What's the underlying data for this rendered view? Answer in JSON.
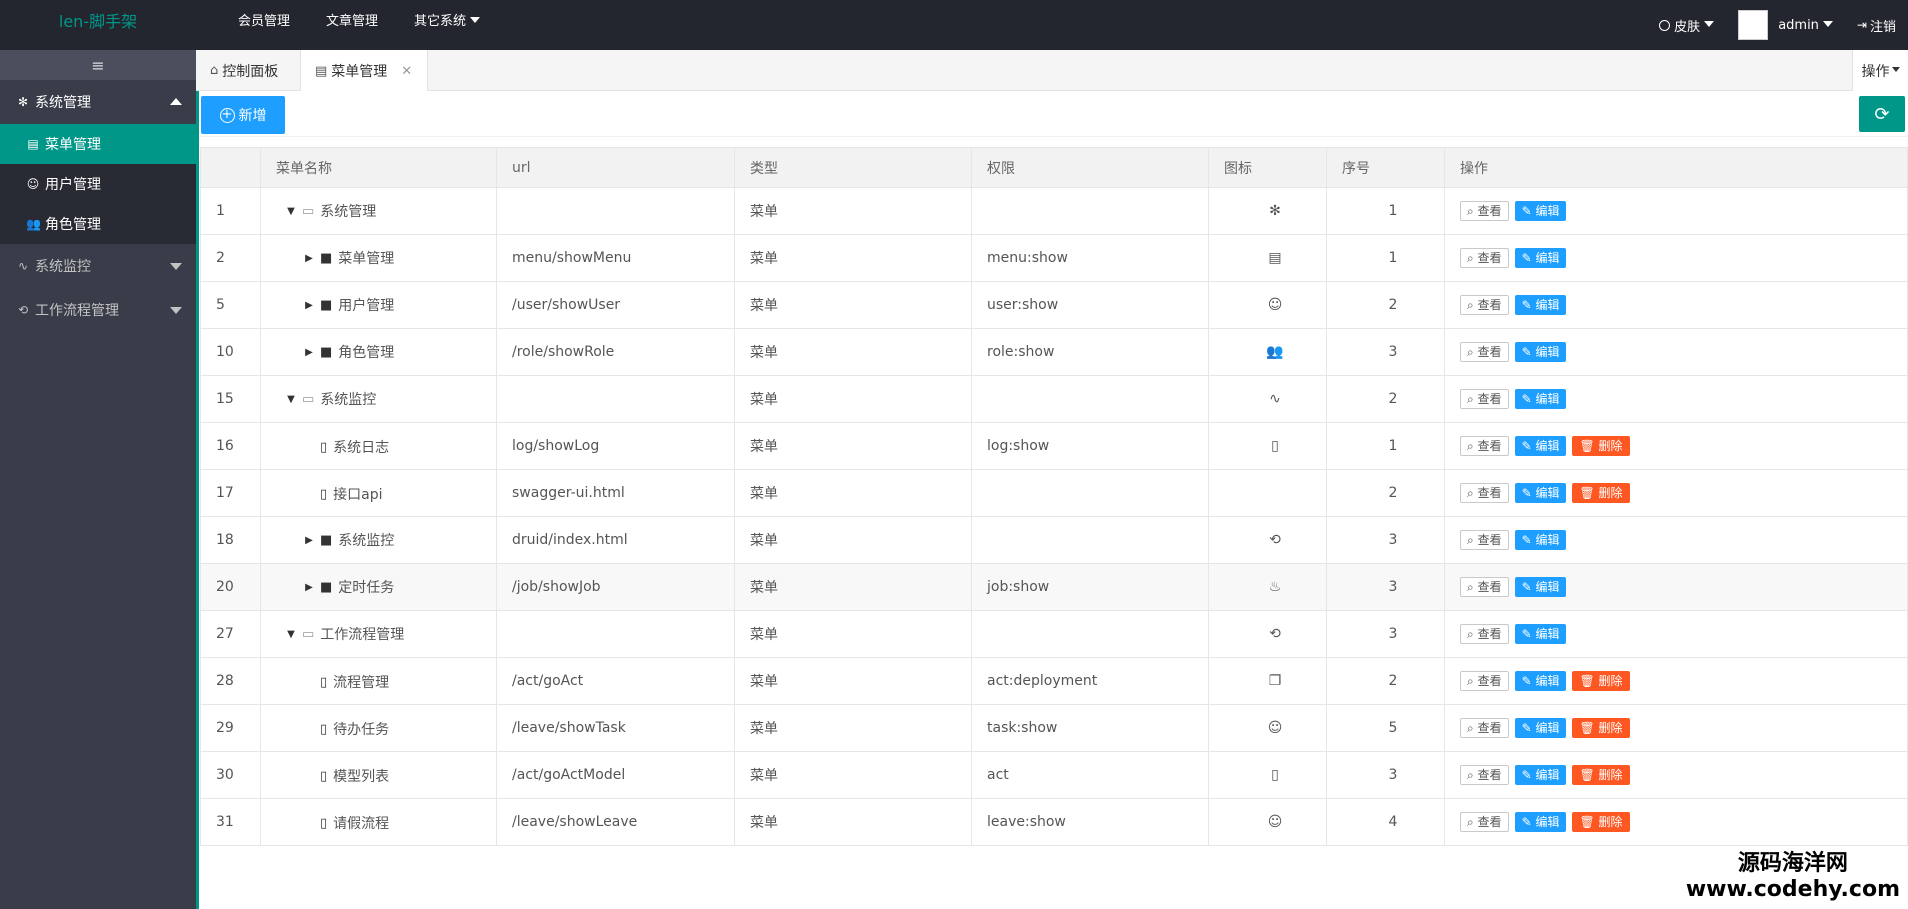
{
  "header": {
    "logo": "len-脚手架",
    "nav": [
      "会员管理",
      "文章管理",
      "其它系统"
    ],
    "skin": "皮肤",
    "user": "admin",
    "logout": "注销"
  },
  "sidebar": {
    "toggle": "≡",
    "groups": [
      {
        "label": "系统管理",
        "icon": "gear-icon",
        "items": [
          {
            "label": "菜单管理",
            "icon": "menu-icon",
            "active": true
          },
          {
            "label": "用户管理",
            "icon": "smile-icon",
            "active": false
          },
          {
            "label": "角色管理",
            "icon": "users-icon",
            "active": false
          }
        ]
      },
      {
        "label": "系统监控",
        "icon": "pulse-icon"
      },
      {
        "label": "工作流程管理",
        "icon": "loop-icon"
      }
    ]
  },
  "tabs": {
    "items": [
      {
        "label": "控制面板",
        "icon": "home-icon"
      },
      {
        "label": "菜单管理",
        "icon": "menu-icon"
      }
    ],
    "ops": "操作"
  },
  "toolbar": {
    "add_label": "新增"
  },
  "table": {
    "headers": [
      "",
      "菜单名称",
      "url",
      "类型",
      "权限",
      "图标",
      "序号",
      "操作"
    ],
    "buttons": {
      "view": "查看",
      "edit": "编辑",
      "delete": "删除"
    },
    "rows": [
      {
        "id": "1",
        "name": "系统管理",
        "url": "",
        "type": "菜单",
        "perm": "",
        "icon": "gear-icon",
        "sort": "1",
        "level": 0,
        "node": "open",
        "del": false
      },
      {
        "id": "2",
        "name": "菜单管理",
        "url": "menu/showMenu",
        "type": "菜单",
        "perm": "menu:show",
        "icon": "menu-icon",
        "sort": "1",
        "level": 1,
        "node": "closed",
        "del": false
      },
      {
        "id": "5",
        "name": "用户管理",
        "url": "/user/showUser",
        "type": "菜单",
        "perm": "user:show",
        "icon": "smile-icon",
        "sort": "2",
        "level": 1,
        "node": "closed",
        "del": false
      },
      {
        "id": "10",
        "name": "角色管理",
        "url": "/role/showRole",
        "type": "菜单",
        "perm": "role:show",
        "icon": "users-icon",
        "sort": "3",
        "level": 1,
        "node": "closed",
        "del": false
      },
      {
        "id": "15",
        "name": "系统监控",
        "url": "",
        "type": "菜单",
        "perm": "",
        "icon": "pulse-icon",
        "sort": "2",
        "level": 0,
        "node": "open",
        "del": false
      },
      {
        "id": "16",
        "name": "系统日志",
        "url": "log/showLog",
        "type": "菜单",
        "perm": "log:show",
        "icon": "file-icon",
        "sort": "1",
        "level": 1,
        "node": "leaf",
        "del": true
      },
      {
        "id": "17",
        "name": "接口api",
        "url": "swagger-ui.html",
        "type": "菜单",
        "perm": "",
        "icon": "code-icon",
        "sort": "2",
        "level": 1,
        "node": "leaf",
        "del": true
      },
      {
        "id": "18",
        "name": "系统监控",
        "url": "druid/index.html",
        "type": "菜单",
        "perm": "",
        "icon": "loop-icon",
        "sort": "3",
        "level": 1,
        "node": "closed",
        "del": false
      },
      {
        "id": "20",
        "name": "定时任务",
        "url": "/job/showJob",
        "type": "菜单",
        "perm": "job:show",
        "icon": "fire-icon",
        "sort": "3",
        "level": 1,
        "node": "closed",
        "del": false
      },
      {
        "id": "27",
        "name": "工作流程管理",
        "url": "",
        "type": "菜单",
        "perm": "",
        "icon": "loop-icon",
        "sort": "3",
        "level": 0,
        "node": "open",
        "del": false
      },
      {
        "id": "28",
        "name": "流程管理",
        "url": "/act/goAct",
        "type": "菜单",
        "perm": "act:deployment",
        "icon": "layers-icon",
        "sort": "2",
        "level": 1,
        "node": "leaf",
        "del": true
      },
      {
        "id": "29",
        "name": "待办任务",
        "url": "/leave/showTask",
        "type": "菜单",
        "perm": "task:show",
        "icon": "smile-icon",
        "sort": "5",
        "level": 1,
        "node": "leaf",
        "del": true
      },
      {
        "id": "30",
        "name": "模型列表",
        "url": "/act/goActModel",
        "type": "菜单",
        "perm": "act",
        "icon": "file-icon",
        "sort": "3",
        "level": 1,
        "node": "leaf",
        "del": true
      },
      {
        "id": "31",
        "name": "请假流程",
        "url": "/leave/showLeave",
        "type": "菜单",
        "perm": "leave:show",
        "icon": "smile-icon",
        "sort": "4",
        "level": 1,
        "node": "leaf",
        "del": true
      }
    ]
  },
  "watermark": {
    "line1": "源码海洋网",
    "line2": "www.codehy.com"
  },
  "colors": {
    "accent": "#009688",
    "primary": "#1e9fff",
    "danger": "#ff5722",
    "header": "#23262e",
    "sidebar": "#393d49"
  }
}
